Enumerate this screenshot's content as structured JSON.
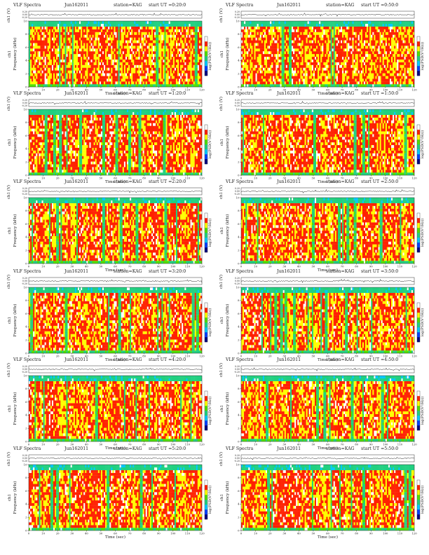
{
  "chart_data": {
    "type": "heatmap",
    "panel_title": "VLF Spectra",
    "station": "station=KAG",
    "ylabel_top": "ch1 (V)",
    "ylabel_top_ticks": [
      "0.20",
      "0.00",
      "-0.20"
    ],
    "ylabel_spec_channel": "ch1",
    "ylabel_spec": "Frequency (kHz)",
    "xlabel": "Time (sec)",
    "x_ticks": [
      0,
      10,
      20,
      30,
      40,
      50,
      60,
      70,
      80,
      90,
      100,
      110,
      120
    ],
    "xlim": [
      0,
      120
    ],
    "ylim_spec": [
      0,
      10
    ],
    "y_ticks_spec": [
      0,
      2,
      4,
      6,
      8,
      10
    ],
    "colorbar_label": "log(PSD(V²/Hz))",
    "colorscale": [
      "#000080",
      "#0040ff",
      "#00c8ff",
      "#20d080",
      "#50e000",
      "#ffff00",
      "#ff2000",
      "#ffffff"
    ],
    "panels": [
      {
        "date": "Jun162011",
        "start_ut": "start UT =0:20:0"
      },
      {
        "date": "Jun162011",
        "start_ut": "start UT =0:50:0"
      },
      {
        "date": "Jun162011",
        "start_ut": "start UT =1:20:0"
      },
      {
        "date": "Jun162011",
        "start_ut": "start UT =1:50:0"
      },
      {
        "date": "Jun162011",
        "start_ut": "start UT =2:20:0"
      },
      {
        "date": "Jun162011",
        "start_ut": "start UT =2:50:0"
      },
      {
        "date": "Jun162011",
        "start_ut": "start UT =3:20:0"
      },
      {
        "date": "Jun162011",
        "start_ut": "start UT =3:50:0"
      },
      {
        "date": "Jun162011",
        "start_ut": "start UT =4:20:0"
      },
      {
        "date": "Jun162011",
        "start_ut": "start UT =4:50:0"
      },
      {
        "date": "Jun162011",
        "start_ut": "start UT =5:20:0"
      },
      {
        "date": "Jun162011",
        "start_ut": "start UT =5:50:0"
      }
    ]
  }
}
